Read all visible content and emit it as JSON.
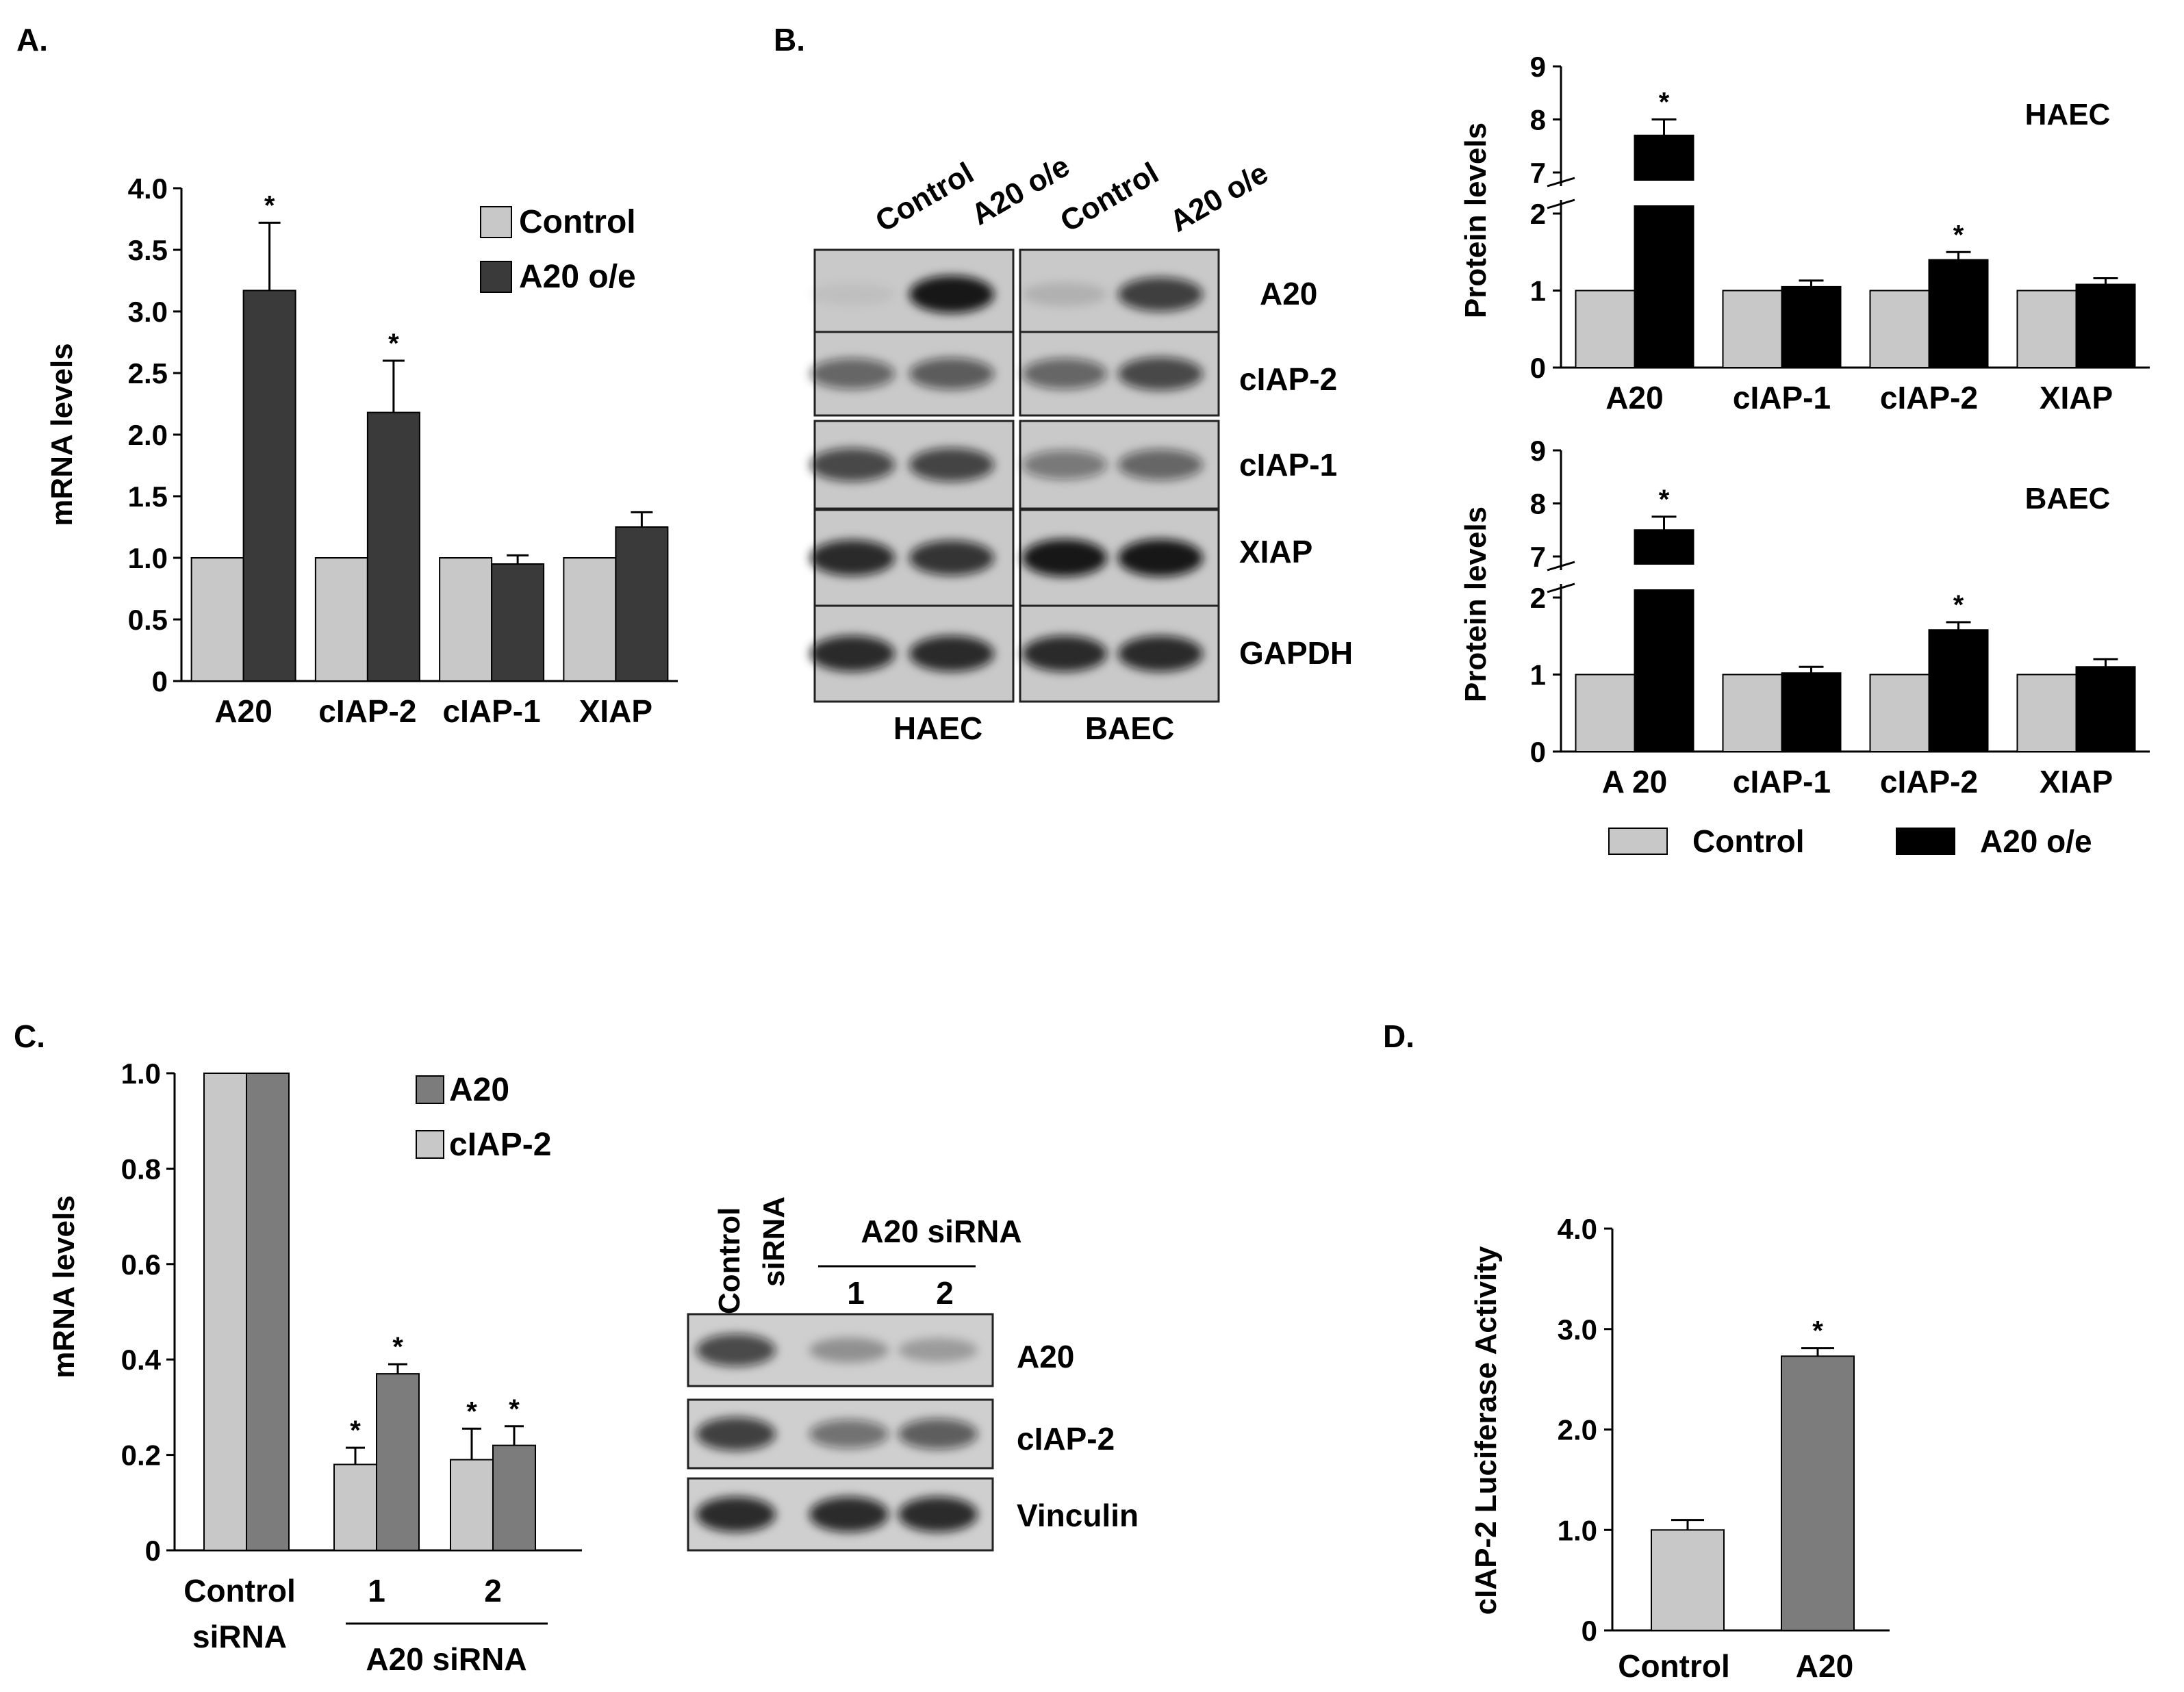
{
  "panels": {
    "A": "A.",
    "B": "B.",
    "C": "C.",
    "D": "D."
  },
  "colors": {
    "light_gray": "#c8c8c8",
    "dark_gray": "#3a3a3a",
    "mid_gray": "#7c7c7c",
    "black": "#000000",
    "blot_bg": "#c9c9c9"
  },
  "blot_b": {
    "lane_labels": [
      "Control",
      "A20 o/e",
      "Control",
      "A20 o/e"
    ],
    "row_labels": [
      "A20",
      "cIAP-2",
      "cIAP-1",
      "XIAP",
      "GAPDH"
    ],
    "cell_labels": [
      "HAEC",
      "BAEC"
    ]
  },
  "blot_c": {
    "control_label": [
      "Control",
      "siRNA"
    ],
    "group_label": "A20 siRNA",
    "lane_numbers": [
      "1",
      "2"
    ],
    "row_labels": [
      "A20",
      "cIAP-2",
      "Vinculin"
    ]
  },
  "chart_data": [
    {
      "id": "A",
      "type": "bar",
      "ylabel": "mRNA levels",
      "xlabel": "",
      "ylim": [
        0,
        4.0
      ],
      "yticks": [
        "0",
        "0.5",
        "1.0",
        "1.5",
        "2.0",
        "2.5",
        "3.0",
        "3.5",
        "4.0"
      ],
      "categories": [
        "A20",
        "cIAP-2",
        "cIAP-1",
        "XIAP"
      ],
      "legend": "top-right",
      "series": [
        {
          "name": "Control",
          "color": "#c8c8c8",
          "values": [
            1.0,
            1.0,
            1.0,
            1.0
          ],
          "errors": [
            0.0,
            0.0,
            0.0,
            0.0
          ]
        },
        {
          "name": "A20 o/e",
          "color": "#3a3a3a",
          "values": [
            3.17,
            2.18,
            0.95,
            1.25
          ],
          "errors": [
            0.55,
            0.42,
            0.07,
            0.12
          ]
        }
      ],
      "significance": [
        {
          "series": 1,
          "category": 0,
          "mark": "*"
        },
        {
          "series": 1,
          "category": 1,
          "mark": "*"
        }
      ]
    },
    {
      "id": "B-HAEC",
      "type": "bar",
      "title": "HAEC",
      "ylabel": "Protein  levels",
      "axis_break": [
        2,
        7
      ],
      "yticks": [
        "0",
        "1",
        "2",
        "7",
        "8",
        "9"
      ],
      "categories": [
        "A20",
        "cIAP-1",
        "cIAP-2",
        "XIAP"
      ],
      "series": [
        {
          "name": "Control",
          "color": "#c8c8c8",
          "values": [
            1.0,
            1.0,
            1.0,
            1.0
          ],
          "errors": [
            0,
            0,
            0,
            0
          ]
        },
        {
          "name": "A20 o/e",
          "color": "#000000",
          "values": [
            7.7,
            1.05,
            1.4,
            1.08
          ],
          "errors": [
            0.3,
            0.08,
            0.1,
            0.08
          ]
        }
      ],
      "significance": [
        {
          "series": 1,
          "category": 0,
          "mark": "*"
        },
        {
          "series": 1,
          "category": 2,
          "mark": "*"
        }
      ]
    },
    {
      "id": "B-BAEC",
      "type": "bar",
      "title": "BAEC",
      "ylabel": "Protein  levels",
      "axis_break": [
        2,
        7
      ],
      "yticks": [
        "0",
        "1",
        "2",
        "7",
        "8",
        "9"
      ],
      "categories": [
        "A 20",
        "cIAP-1",
        "cIAP-2",
        "XIAP"
      ],
      "series": [
        {
          "name": "Control",
          "color": "#c8c8c8",
          "values": [
            1.0,
            1.0,
            1.0,
            1.0
          ],
          "errors": [
            0,
            0,
            0,
            0
          ]
        },
        {
          "name": "A20 o/e",
          "color": "#000000",
          "values": [
            7.5,
            1.02,
            1.58,
            1.1
          ],
          "errors": [
            0.25,
            0.08,
            0.1,
            0.1
          ]
        }
      ],
      "significance": [
        {
          "series": 1,
          "category": 0,
          "mark": "*"
        },
        {
          "series": 1,
          "category": 2,
          "mark": "*"
        }
      ],
      "legend_labels": [
        "Control",
        "A20 o/e"
      ],
      "legend": "bottom"
    },
    {
      "id": "C",
      "type": "bar",
      "ylabel": "mRNA  levels",
      "ylim": [
        0,
        1.0
      ],
      "yticks": [
        "0",
        "0.2",
        "0.4",
        "0.6",
        "0.8",
        "1.0"
      ],
      "categories": [
        "Control siRNA",
        "1",
        "2"
      ],
      "category_lines": [
        [
          "Control",
          "siRNA"
        ],
        [
          "1"
        ],
        [
          "2"
        ]
      ],
      "group_label": "A20 siRNA",
      "legend": "top-right",
      "legend_labels": [
        "A20",
        "cIAP-2"
      ],
      "series": [
        {
          "name": "cIAP-2",
          "color": "#c8c8c8",
          "values": [
            1.0,
            0.18,
            0.19
          ],
          "errors": [
            0,
            0.035,
            0.065
          ]
        },
        {
          "name": "A20",
          "color": "#7c7c7c",
          "values": [
            1.0,
            0.37,
            0.22
          ],
          "errors": [
            0,
            0.02,
            0.04
          ]
        }
      ],
      "significance": [
        {
          "series": 0,
          "category": 1,
          "mark": "*"
        },
        {
          "series": 1,
          "category": 1,
          "mark": "*"
        },
        {
          "series": 0,
          "category": 2,
          "mark": "*"
        },
        {
          "series": 1,
          "category": 2,
          "mark": "*"
        }
      ]
    },
    {
      "id": "D",
      "type": "bar",
      "ylabel": "cIAP-2 Luciferase Activity",
      "ylim": [
        0,
        4.0
      ],
      "yticks": [
        "0",
        "1.0",
        "2.0",
        "3.0",
        "4.0"
      ],
      "categories": [
        "Control",
        "A20"
      ],
      "values": [
        1.0,
        2.73
      ],
      "errors": [
        0.1,
        0.08
      ],
      "colors": [
        "#c8c8c8",
        "#7c7c7c"
      ],
      "significance": [
        {
          "category": 1,
          "mark": "*"
        }
      ]
    }
  ]
}
